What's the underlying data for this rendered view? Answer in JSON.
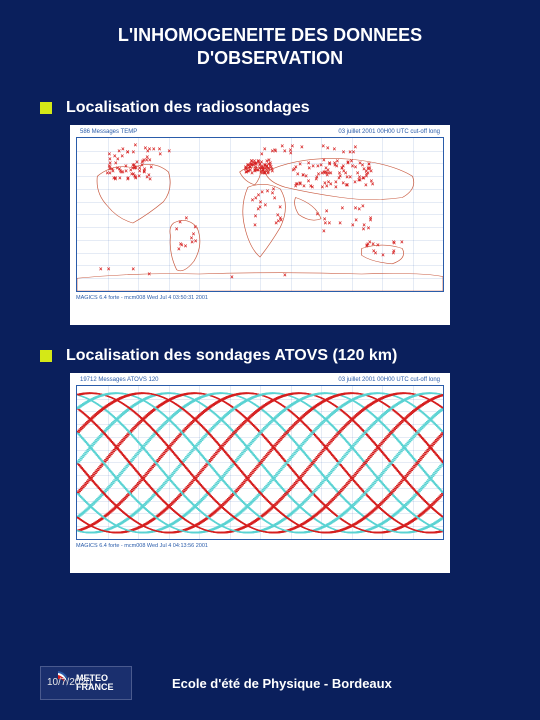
{
  "title_line1": "L'INHOMOGENEITE DES DONNEES",
  "title_line2": "D'OBSERVATION",
  "sections": [
    {
      "label": "Localisation des radiosondages",
      "chart": {
        "type": "scatter-map",
        "header_left": "586  Messages TEMP",
        "header_right": "03  juillet  2001 00H00 UTC cut-off long",
        "footer": "MAGICS 6.4 forte - mcm008 Wed Jul 4 03:50:31 2001",
        "xlim": [
          -180,
          180
        ],
        "ylim": [
          -90,
          90
        ],
        "xtick_step": 30,
        "ytick_step": 15,
        "grid_color": "#dbe3f0",
        "continent_color": "#c85a40",
        "marker_color": "#d62020",
        "marker": "x",
        "marker_size": 3,
        "background": "#ffffff"
      }
    },
    {
      "label": "Localisation des sondages ATOVS (120 km)",
      "chart": {
        "type": "swath-map",
        "header_left": "19712  Messages ATOVS 120",
        "header_right": "03  juillet  2001 00H00 UTC cut-off long",
        "footer": "MAGICS 6.4 forte - mcm008 Wed Jul 4 04:13:56 2001",
        "xlim": [
          -180,
          180
        ],
        "ylim": [
          -90,
          90
        ],
        "xtick_step": 30,
        "ytick_step": 15,
        "grid_color": "#dbe3f0",
        "background": "#ffffff",
        "swath_colors": [
          "#5bd3d3",
          "#d62020"
        ],
        "swath_count_per_color": 7
      }
    }
  ],
  "footer": {
    "date": "10/7/2020",
    "logo_top": "METEO",
    "logo_bottom": "FRANCE",
    "logo_colors": {
      "blue": "#2a5caa",
      "white": "#ffffff",
      "red": "#d62020"
    },
    "label": "Ecole d'été de Physique - Bordeaux"
  },
  "colors": {
    "background": "#0a1f5c",
    "bullet": "#d4e817",
    "text": "#ffffff"
  }
}
